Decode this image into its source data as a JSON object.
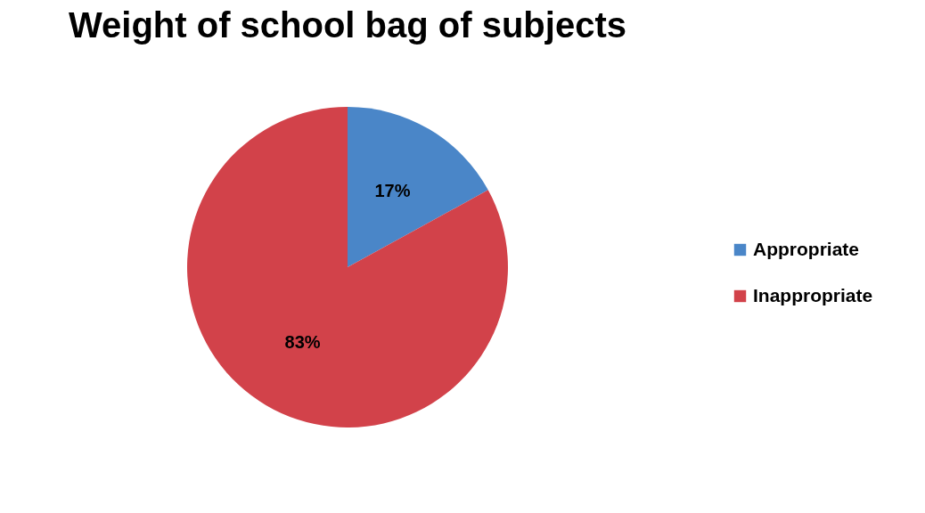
{
  "chart_data": {
    "type": "pie",
    "title": "Weight of school bag of subjects",
    "categories": [
      "Appropriate",
      "Inappropriate"
    ],
    "values": [
      17,
      83
    ],
    "colors": [
      "#4a86c8",
      "#d2424a"
    ],
    "value_labels": [
      "17%",
      "83%"
    ],
    "legend": "right"
  }
}
